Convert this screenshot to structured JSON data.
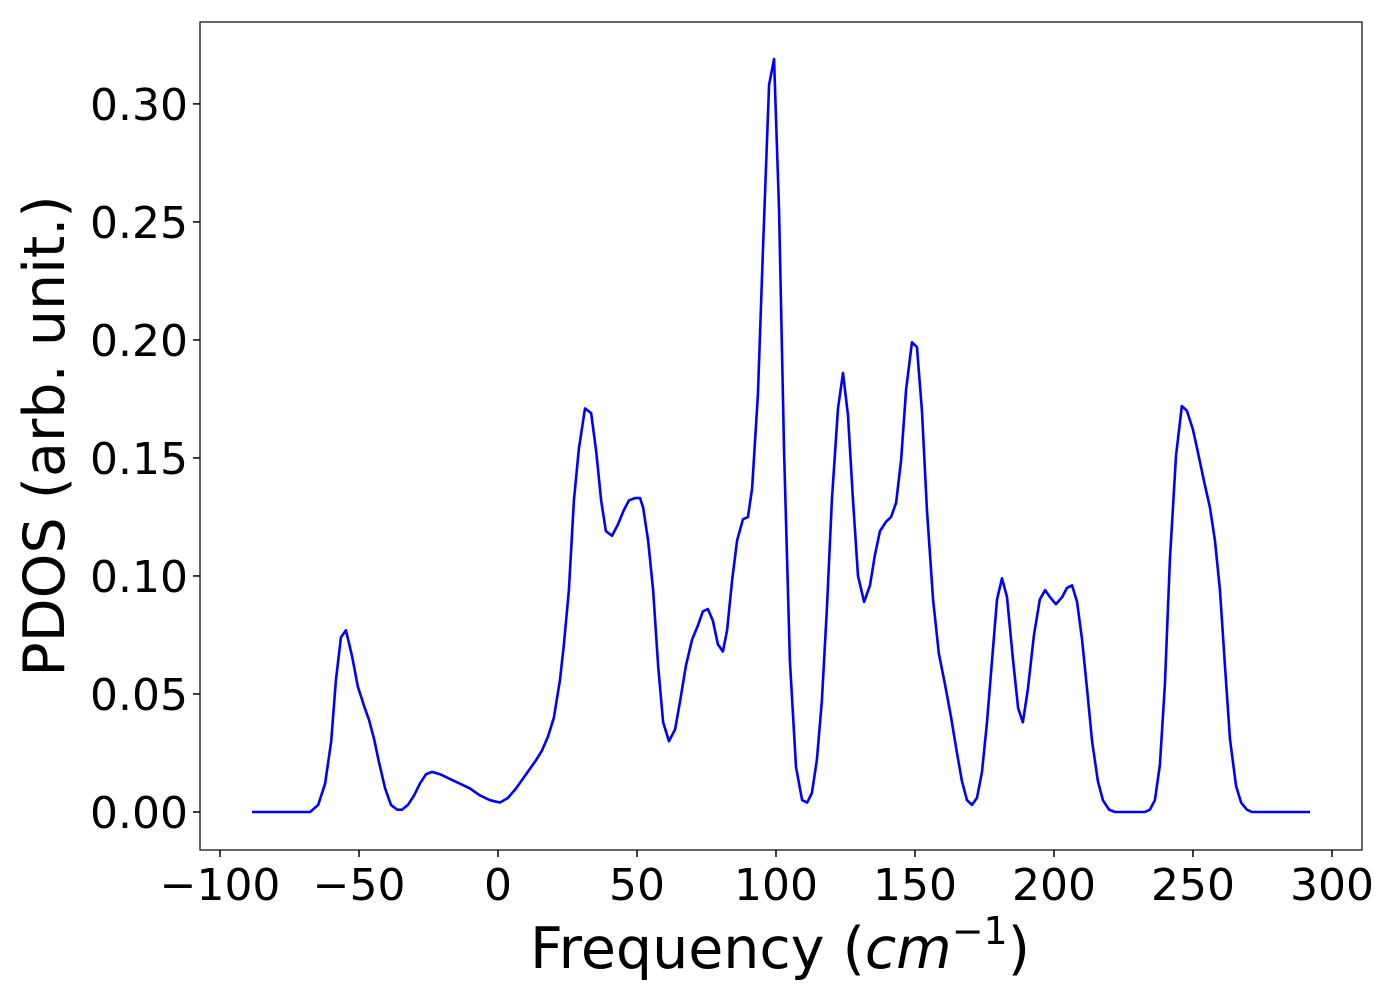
{
  "chart_data": {
    "type": "line",
    "xlabel": [
      "Frequency (",
      "cm",
      "−1",
      ")"
    ],
    "ylabel": "PDOS (arb. unit.)",
    "color": "#0000ff",
    "xlim": [
      -107.2,
      310.8
    ],
    "ylim": [
      -0.0161,
      0.3347
    ],
    "xticks": [
      {
        "value": -100,
        "label": "−100"
      },
      {
        "value": -50,
        "label": "−50"
      },
      0,
      50,
      100,
      150,
      200,
      250,
      300
    ],
    "yticks": [
      {
        "value": 0,
        "label": "0.00"
      },
      0.05,
      {
        "value": 0.1,
        "label": "0.10"
      },
      0.15,
      {
        "value": 0.2,
        "label": "0.20"
      },
      0.25,
      {
        "value": 0.3,
        "label": "0.30"
      }
    ],
    "x": [
      -88.5,
      -67.6,
      -64.7,
      -62.2,
      -60,
      -58.3,
      -56.5,
      -54.7,
      -52.5,
      -50.4,
      -48.2,
      -46.4,
      -44.6,
      -42.8,
      -40.6,
      -38.5,
      -36.3,
      -34.5,
      -32.4,
      -30.2,
      -28.1,
      -25.9,
      -23.7,
      -20.9,
      -17.3,
      -13.7,
      -10.1,
      -6.5,
      -2.9,
      0.7,
      3.6,
      6.5,
      10.1,
      13.7,
      15.8,
      18,
      20.1,
      22.3,
      23.7,
      25.5,
      27.3,
      29.1,
      31.3,
      33.5,
      35.3,
      37.1,
      38.8,
      41,
      43.2,
      45.3,
      47.1,
      49.3,
      51.1,
      52.2,
      54,
      55.8,
      57.6,
      59.4,
      61.5,
      63.7,
      65.5,
      67.6,
      69.8,
      71.9,
      73.7,
      75.5,
      77.3,
      79.1,
      80.9,
      82.4,
      84.2,
      86,
      88.1,
      89.9,
      91.4,
      93.5,
      95.3,
      97.5,
      99.3,
      101.1,
      102.9,
      105,
      107.2,
      109.4,
      111.2,
      112.9,
      114.7,
      116.5,
      118.3,
      120.1,
      122.3,
      124.1,
      125.9,
      127.7,
      129.5,
      131.7,
      133.8,
      135.6,
      137.4,
      139.6,
      141.4,
      143.2,
      145,
      146.8,
      148.9,
      150.7,
      152.5,
      154.3,
      156.5,
      158.6,
      160.8,
      163,
      165.1,
      166.9,
      168.7,
      170.5,
      172.3,
      174.1,
      175.9,
      177.7,
      179.5,
      181.3,
      183.1,
      185.3,
      187.1,
      188.8,
      190.6,
      192.8,
      194.9,
      196.8,
      198.6,
      200.7,
      202.9,
      204.7,
      206.5,
      208.3,
      210.1,
      211.9,
      213.7,
      215.8,
      217.6,
      219.8,
      221.9,
      232.7,
      234.5,
      236.3,
      238.1,
      239.9,
      241.7,
      243.9,
      246,
      247.8,
      250,
      252.2,
      254,
      256.1,
      257.9,
      259.7,
      261.5,
      263.3,
      265.5,
      267.3,
      269.4,
      271.2,
      292.1
    ],
    "values": [
      0,
      0,
      0.003,
      0.012,
      0.03,
      0.056,
      0.074,
      0.077,
      0.066,
      0.053,
      0.045,
      0.039,
      0.031,
      0.021,
      0.01,
      0.003,
      0.001,
      0.001,
      0.003,
      0.007,
      0.012,
      0.016,
      0.017,
      0.016,
      0.014,
      0.012,
      0.01,
      0.007,
      0.005,
      0.004,
      0.006,
      0.01,
      0.016,
      0.022,
      0.026,
      0.032,
      0.04,
      0.056,
      0.071,
      0.094,
      0.132,
      0.154,
      0.171,
      0.169,
      0.153,
      0.132,
      0.119,
      0.117,
      0.122,
      0.128,
      0.132,
      0.133,
      0.133,
      0.129,
      0.115,
      0.094,
      0.062,
      0.038,
      0.03,
      0.035,
      0.047,
      0.062,
      0.073,
      0.079,
      0.085,
      0.086,
      0.081,
      0.071,
      0.068,
      0.077,
      0.098,
      0.115,
      0.124,
      0.125,
      0.137,
      0.177,
      0.238,
      0.308,
      0.319,
      0.255,
      0.153,
      0.064,
      0.019,
      0.005,
      0.004,
      0.008,
      0.022,
      0.047,
      0.086,
      0.132,
      0.171,
      0.186,
      0.168,
      0.132,
      0.1,
      0.089,
      0.096,
      0.109,
      0.119,
      0.123,
      0.125,
      0.131,
      0.149,
      0.179,
      0.199,
      0.197,
      0.17,
      0.128,
      0.09,
      0.067,
      0.054,
      0.04,
      0.025,
      0.013,
      0.005,
      0.003,
      0.006,
      0.017,
      0.038,
      0.064,
      0.09,
      0.099,
      0.091,
      0.064,
      0.044,
      0.038,
      0.052,
      0.075,
      0.09,
      0.094,
      0.091,
      0.088,
      0.091,
      0.095,
      0.096,
      0.089,
      0.073,
      0.052,
      0.03,
      0.013,
      0.005,
      0.001,
      0,
      0,
      0.001,
      0.005,
      0.02,
      0.054,
      0.107,
      0.151,
      0.172,
      0.17,
      0.162,
      0.15,
      0.14,
      0.129,
      0.115,
      0.094,
      0.062,
      0.031,
      0.011,
      0.004,
      0.001,
      0,
      0
    ]
  }
}
